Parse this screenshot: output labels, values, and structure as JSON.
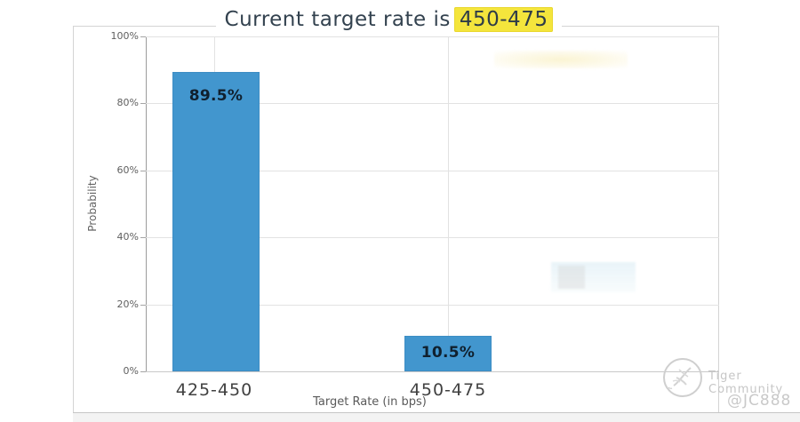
{
  "chart_data": {
    "type": "bar",
    "title": "Current target rate is 450-475",
    "title_prefix": "Current target rate is",
    "title_highlight": "450-475",
    "categories": [
      "425-450",
      "450-475"
    ],
    "values": [
      89.5,
      10.5
    ],
    "data_labels": [
      "89.5%",
      "10.5%"
    ],
    "xlabel": "Target Rate (in bps)",
    "ylabel": "Probability",
    "ylim": [
      0,
      100
    ],
    "yticks": [
      "0%",
      "20%",
      "40%",
      "60%",
      "80%",
      "100%"
    ],
    "grid": true,
    "legend": false,
    "bar_color": "#4296ce",
    "title_highlight_color": "#f4e53c"
  },
  "watermark": {
    "logo": "tiger-community-logo",
    "name": "Tiger Community",
    "handle": "@JC888"
  }
}
